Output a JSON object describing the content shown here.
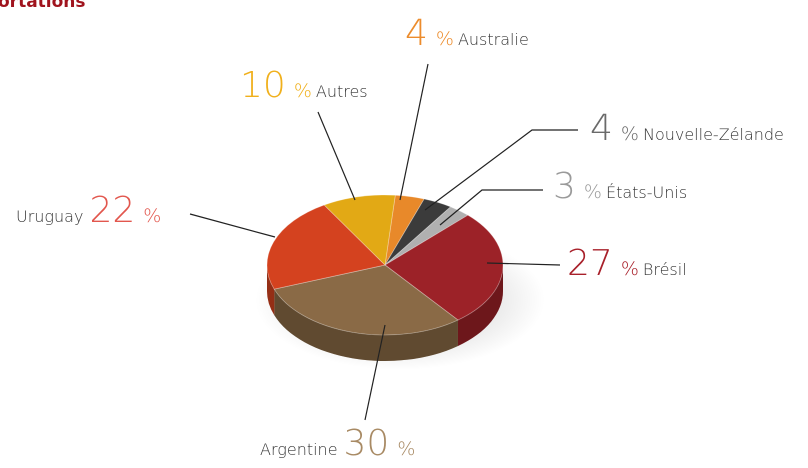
{
  "chart_data": {
    "type": "pie",
    "title": "ortations",
    "unit": "%",
    "categories": [
      "Australie",
      "Nouvelle-Zélande",
      "États-Unis",
      "Brésil",
      "Argentine",
      "Uruguay",
      "Autres"
    ],
    "values": [
      4,
      4,
      3,
      27,
      30,
      22,
      10
    ],
    "colors": [
      "#e8892a",
      "#3b3b3b",
      "#b0b0b0",
      "#9c2228",
      "#8a6a46",
      "#d4421f",
      "#e2a915"
    ],
    "label_colors": [
      "#ec8c2c",
      "#6a6a6a",
      "#9a9a9a",
      "#a8202a",
      "#a88a64",
      "#e2574e",
      "#f0b01c"
    ]
  }
}
